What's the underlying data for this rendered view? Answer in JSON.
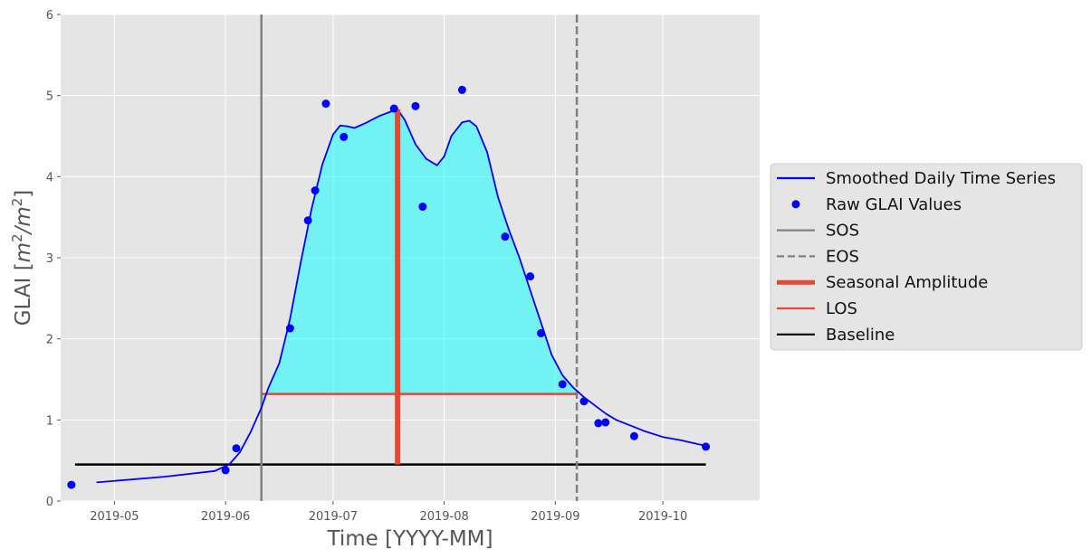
{
  "chart_data": {
    "type": "line",
    "title": "",
    "xlabel": "Time [YYYY-MM]",
    "ylabel": "GLAI [m²/m²]",
    "ylabel_parts": {
      "prefix": "GLAI [",
      "m": "m",
      "exp1": "2",
      "slash": "/",
      "m2": "m",
      "exp2": "2",
      "suffix": "]"
    },
    "grid": true,
    "legend_position": "center-right, outside plot",
    "xlim": [
      "2019-04-16",
      "2019-10-28"
    ],
    "ylim": [
      0,
      6
    ],
    "x_ticks": [
      "2019-05-01",
      "2019-06-01",
      "2019-07-01",
      "2019-08-01",
      "2019-09-01",
      "2019-10-01"
    ],
    "x_tick_labels": [
      "2019-05",
      "2019-06",
      "2019-07",
      "2019-08",
      "2019-09",
      "2019-10"
    ],
    "y_ticks": [
      0,
      1,
      2,
      3,
      4,
      5,
      6
    ],
    "y_tick_labels": [
      "0",
      "1",
      "2",
      "3",
      "4",
      "5",
      "6"
    ],
    "series": [
      {
        "name": "Smoothed Daily Time Series",
        "kind": "line",
        "color": "#0000ff",
        "points": [
          [
            "2019-04-26",
            0.23
          ],
          [
            "2019-05-15",
            0.3
          ],
          [
            "2019-05-29",
            0.37
          ],
          [
            "2019-06-02",
            0.45
          ],
          [
            "2019-06-05",
            0.6
          ],
          [
            "2019-06-08",
            0.85
          ],
          [
            "2019-06-11",
            1.15
          ],
          [
            "2019-06-13",
            1.4
          ],
          [
            "2019-06-16",
            1.7
          ],
          [
            "2019-06-19",
            2.25
          ],
          [
            "2019-06-22",
            2.95
          ],
          [
            "2019-06-25",
            3.6
          ],
          [
            "2019-06-28",
            4.15
          ],
          [
            "2019-07-01",
            4.52
          ],
          [
            "2019-07-03",
            4.63
          ],
          [
            "2019-07-05",
            4.62
          ],
          [
            "2019-07-07",
            4.6
          ],
          [
            "2019-07-10",
            4.66
          ],
          [
            "2019-07-14",
            4.75
          ],
          [
            "2019-07-17",
            4.8
          ],
          [
            "2019-07-19",
            4.83
          ],
          [
            "2019-07-21",
            4.7
          ],
          [
            "2019-07-24",
            4.4
          ],
          [
            "2019-07-27",
            4.22
          ],
          [
            "2019-07-30",
            4.14
          ],
          [
            "2019-08-01",
            4.25
          ],
          [
            "2019-08-03",
            4.5
          ],
          [
            "2019-08-06",
            4.67
          ],
          [
            "2019-08-08",
            4.69
          ],
          [
            "2019-08-10",
            4.62
          ],
          [
            "2019-08-13",
            4.3
          ],
          [
            "2019-08-16",
            3.75
          ],
          [
            "2019-08-19",
            3.35
          ],
          [
            "2019-08-22",
            3.0
          ],
          [
            "2019-08-25",
            2.6
          ],
          [
            "2019-08-28",
            2.2
          ],
          [
            "2019-08-31",
            1.8
          ],
          [
            "2019-09-03",
            1.55
          ],
          [
            "2019-09-06",
            1.4
          ],
          [
            "2019-09-09",
            1.28
          ],
          [
            "2019-09-12",
            1.18
          ],
          [
            "2019-09-15",
            1.08
          ],
          [
            "2019-09-18",
            1.0
          ],
          [
            "2019-09-22",
            0.93
          ],
          [
            "2019-09-26",
            0.86
          ],
          [
            "2019-10-01",
            0.79
          ],
          [
            "2019-10-06",
            0.75
          ],
          [
            "2019-10-11",
            0.7
          ],
          [
            "2019-10-14",
            0.67
          ]
        ]
      },
      {
        "name": "Raw GLAI Values",
        "kind": "scatter",
        "color": "#0000ff",
        "points": [
          [
            "2019-04-19",
            0.2
          ],
          [
            "2019-06-01",
            0.38
          ],
          [
            "2019-06-04",
            0.65
          ],
          [
            "2019-06-19",
            2.13
          ],
          [
            "2019-06-24",
            3.46
          ],
          [
            "2019-06-26",
            3.83
          ],
          [
            "2019-06-29",
            4.9
          ],
          [
            "2019-07-04",
            4.49
          ],
          [
            "2019-07-18",
            4.84
          ],
          [
            "2019-07-24",
            4.87
          ],
          [
            "2019-07-26",
            3.63
          ],
          [
            "2019-08-06",
            5.07
          ],
          [
            "2019-08-18",
            3.26
          ],
          [
            "2019-08-25",
            2.77
          ],
          [
            "2019-08-28",
            2.07
          ],
          [
            "2019-09-03",
            1.44
          ],
          [
            "2019-09-09",
            1.23
          ],
          [
            "2019-09-13",
            0.96
          ],
          [
            "2019-09-15",
            0.97
          ],
          [
            "2019-09-23",
            0.8
          ],
          [
            "2019-10-13",
            0.67
          ]
        ]
      },
      {
        "name": "SOS",
        "kind": "vline",
        "color": "#808080",
        "style": "solid",
        "x": "2019-06-11"
      },
      {
        "name": "EOS",
        "kind": "vline",
        "color": "#808080",
        "style": "dashed",
        "x": "2019-09-07"
      },
      {
        "name": "Seasonal Amplitude",
        "kind": "vsegment",
        "color": "#e24a33",
        "style": "thick",
        "x": "2019-07-19",
        "y": [
          0.45,
          4.83
        ]
      },
      {
        "name": "LOS",
        "kind": "hsegment",
        "color": "#e24a33",
        "style": "solid",
        "x": [
          "2019-06-11",
          "2019-09-07"
        ],
        "y": 1.32
      },
      {
        "name": "Baseline",
        "kind": "hsegment",
        "color": "#000000",
        "style": "solid",
        "x": [
          "2019-04-20",
          "2019-10-13"
        ],
        "y": 0.45
      }
    ],
    "fill": {
      "color": "#00ffff",
      "between": [
        "2019-06-11",
        "2019-09-07"
      ],
      "lower": 1.32
    }
  }
}
